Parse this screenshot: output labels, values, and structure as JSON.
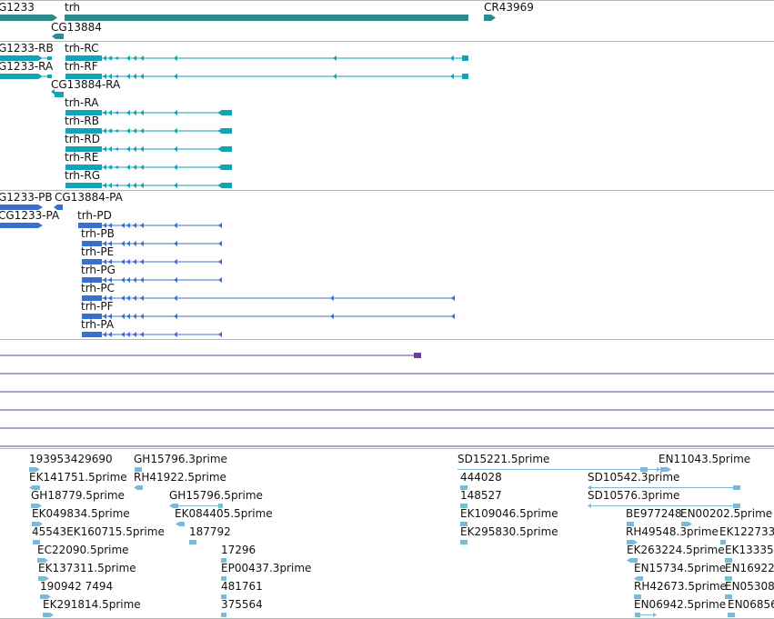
{
  "colors": {
    "gene": "#2e8b8b",
    "transcript": "#11a3b8",
    "protein": "#3a6fd0",
    "misc_bar": "#6a3fa0",
    "est": "#7fb7d7",
    "separator": "#b8b8b8"
  },
  "gene_track": {
    "labels": [
      "G1233",
      "trh",
      "CR43969",
      "CG13884"
    ]
  },
  "transcript_track": {
    "labels": [
      "G1233-RB",
      "trh-RC",
      "G1233-RA",
      "trh-RF",
      "CG13884-RA",
      "trh-RA",
      "trh-RB",
      "trh-RD",
      "trh-RE",
      "trh-RG"
    ]
  },
  "protein_track": {
    "labels": [
      "G1233-PB",
      "CG13884-PA",
      "CG1233-PA",
      "trh-PD",
      "trh-PB",
      "trh-PE",
      "trh-PG",
      "trh-PC",
      "trh-PF",
      "trh-PA"
    ]
  },
  "est_track": {
    "labels": [
      "193953429690",
      "GH15796.3prime",
      "SD15221.5prime",
      "EN11043.5prime",
      "EK141751.5prime",
      "RH41922.5prime",
      "444028",
      "SD10542.3prime",
      "GH18779.5prime",
      "GH15796.5prime",
      "148527",
      "SD10576.3prime",
      "EK049834.5prime",
      "EK084405.5prime",
      "EK109046.5prime",
      "BE977248",
      "EN00202.5prime",
      "45543EK160715.5prime",
      "187792",
      "EK295830.5prime",
      "RH49548.3prime",
      "EK122733",
      "EC22090.5prime",
      "17296",
      "EK263224.5prime",
      "EK13335",
      "EK137311.5prime",
      "EP00437.3prime",
      "EN15734.5prime",
      "EN16922",
      "190942 7494",
      "481761",
      "RH42673.5prime",
      "EN05308",
      "EK291814.5prime",
      "375564",
      "EN06942.5prime",
      "EN06856"
    ]
  }
}
